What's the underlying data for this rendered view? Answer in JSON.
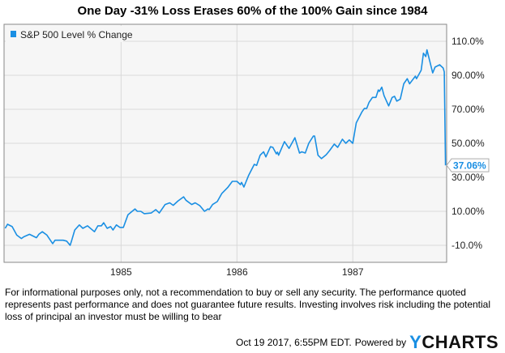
{
  "chart_data": {
    "type": "line",
    "title": "One Day -31% Loss Erases 60% of the 100% Gain since 1984",
    "xlabel": "",
    "ylabel": "",
    "xlim": [
      1983.99,
      1987.81
    ],
    "ylim": [
      -20,
      120
    ],
    "grid": true,
    "legend_placement": "top-left",
    "x_ticks": [
      1985,
      1986,
      1987
    ],
    "x_tick_labels": [
      "1985",
      "1986",
      "1987"
    ],
    "y_ticks": [
      110,
      90,
      70,
      50,
      30,
      10,
      -10
    ],
    "y_tick_labels": [
      "110.0%",
      "90.00%",
      "70.00%",
      "50.00%",
      "30.00%",
      "10.00%",
      "-10.0%"
    ],
    "series": [
      {
        "name": "S&P 500 Level % Change",
        "color": "#1a8fe3",
        "last_value_label": "37.06%",
        "x": [
          1984.0,
          1984.02,
          1984.06,
          1984.1,
          1984.14,
          1984.16,
          1984.21,
          1984.27,
          1984.29,
          1984.32,
          1984.36,
          1984.41,
          1984.43,
          1984.5,
          1984.53,
          1984.56,
          1984.57,
          1984.6,
          1984.64,
          1984.67,
          1984.71,
          1984.77,
          1984.8,
          1984.83,
          1984.85,
          1984.88,
          1984.91,
          1984.93,
          1984.96,
          1984.99,
          1985.02,
          1985.06,
          1985.12,
          1985.14,
          1985.17,
          1985.2,
          1985.26,
          1985.3,
          1985.33,
          1985.38,
          1985.42,
          1985.45,
          1985.49,
          1985.54,
          1985.56,
          1985.61,
          1985.64,
          1985.68,
          1985.72,
          1985.75,
          1985.76,
          1985.79,
          1985.83,
          1985.87,
          1985.92,
          1985.96,
          1986.0,
          1986.03,
          1986.04,
          1986.06,
          1986.1,
          1986.15,
          1986.17,
          1986.2,
          1986.23,
          1986.25,
          1986.29,
          1986.31,
          1986.34,
          1986.35,
          1986.36,
          1986.41,
          1986.45,
          1986.5,
          1986.54,
          1986.56,
          1986.59,
          1986.62,
          1986.66,
          1986.67,
          1986.7,
          1986.73,
          1986.77,
          1986.8,
          1986.84,
          1986.87,
          1986.91,
          1986.94,
          1986.97,
          1987.0,
          1987.03,
          1987.08,
          1987.1,
          1987.12,
          1987.14,
          1987.17,
          1987.2,
          1987.22,
          1987.23,
          1987.25,
          1987.27,
          1987.31,
          1987.34,
          1987.36,
          1987.38,
          1987.41,
          1987.44,
          1987.47,
          1987.49,
          1987.54,
          1987.55,
          1987.59,
          1987.61,
          1987.63,
          1987.64,
          1987.69,
          1987.71,
          1987.75,
          1987.78,
          1987.79,
          1987.8
        ],
        "y": [
          0,
          2.4,
          1,
          -4,
          -6,
          -5,
          -3.5,
          -5.5,
          -3.5,
          -2,
          -4,
          -9,
          -7,
          -7,
          -7.5,
          -10,
          -8,
          -1,
          2,
          0,
          1.5,
          -2,
          1.5,
          1.5,
          3.3,
          0,
          1,
          -1,
          2,
          0.5,
          0.5,
          8,
          11.4,
          10,
          10,
          8.6,
          9,
          11,
          9,
          14,
          15,
          13.5,
          16,
          18.5,
          16.5,
          14,
          15,
          13.3,
          10,
          11.4,
          11,
          14,
          15.7,
          20.5,
          24,
          27.6,
          27.6,
          25.7,
          27,
          24.3,
          31,
          37.6,
          37,
          43,
          45,
          42,
          48,
          47.6,
          43.8,
          44.8,
          43,
          51,
          47,
          53.3,
          44.3,
          45,
          44.3,
          50,
          54.3,
          54.3,
          43,
          41,
          43.3,
          45.7,
          49.5,
          47.6,
          52.4,
          50,
          52,
          50,
          62,
          68.6,
          70.5,
          70.5,
          74,
          77,
          77,
          81.4,
          80.5,
          83,
          78,
          72,
          77,
          77.6,
          74.8,
          76,
          85,
          88,
          85,
          89.5,
          88,
          93,
          103,
          101,
          105,
          91.4,
          94.8,
          96.2,
          94.3,
          92,
          37.06
        ]
      }
    ]
  },
  "disclaimer": "For informational purposes only, not a recommendation to buy or sell any security. The performance quoted represents past performance and does not guarantee future results. Investing involves risk including the potential loss of principal an investor must be willing to bear",
  "footer": {
    "timestamp": "Oct 19 2017, 6:55PM EDT.",
    "powered_by": "Powered by",
    "logo_y": "Y",
    "logo_rest": "CHARTS"
  }
}
